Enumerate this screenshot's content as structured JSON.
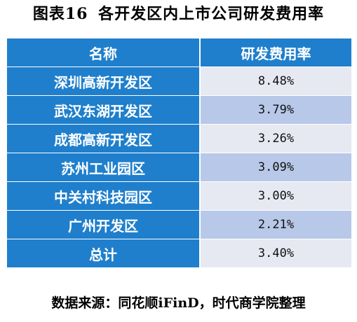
{
  "title": {
    "figure_label": "图表16",
    "text": "各开发区内上市公司研发费用率"
  },
  "table": {
    "headers": [
      "名称",
      "研发费用率"
    ],
    "rows": [
      {
        "name": "深圳高新开发区",
        "rate": "8.48%"
      },
      {
        "name": "武汉东湖开发区",
        "rate": "3.79%"
      },
      {
        "name": "成都高新开发区",
        "rate": "3.26%"
      },
      {
        "name": "苏州工业园区",
        "rate": "3.09%"
      },
      {
        "name": "中关村科技园区",
        "rate": "3.00%"
      },
      {
        "name": "广州开发区",
        "rate": "2.21%"
      },
      {
        "name": "总计",
        "rate": "3.40%"
      }
    ]
  },
  "source": "数据来源：同花顺iFinD，时代商学院整理",
  "colors": {
    "header_bg": "#1f7fcc",
    "row_light": "#e6e9f2",
    "row_dark": "#b8c8e8"
  }
}
